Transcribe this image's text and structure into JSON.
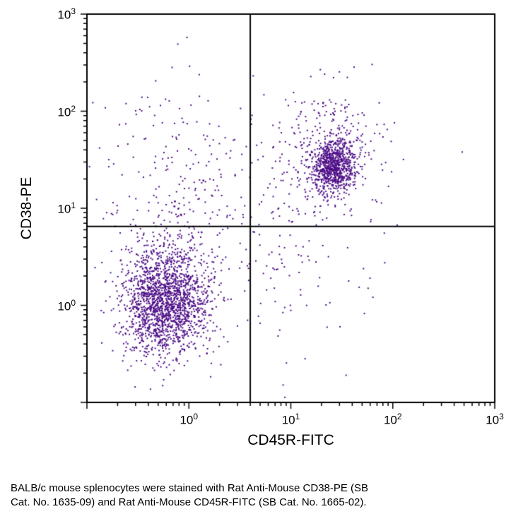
{
  "figure": {
    "caption": {
      "lines": [
        "BALB/c mouse splenocytes were stained with Rat Anti-Mouse CD38-PE (SB",
        "Cat. No. 1635-09) and Rat Anti-Mouse CD45R-FITC (SB Cat. No. 1665-02)."
      ]
    }
  },
  "chart_data": {
    "type": "scatter",
    "title": "",
    "xlabel": "CD45R-FITC",
    "ylabel": "CD38-PE",
    "x_scale": "log",
    "y_scale": "log",
    "xlim": [
      0.1,
      1000
    ],
    "ylim": [
      0.1,
      1000
    ],
    "x_tick_exponents": [
      0,
      1,
      2,
      3
    ],
    "y_tick_exponents": [
      0,
      1,
      2,
      3
    ],
    "tick_base": "10",
    "grid": false,
    "legend": "none",
    "quadrant_gates": {
      "x": 4.0,
      "y": 6.5
    },
    "point_color": "#4d0d87",
    "axis_color": "#000000",
    "populations": [
      {
        "name": "CD45R-neg CD38-low splenocytes",
        "center": [
          0.58,
          1.05
        ],
        "sigma_log": [
          0.21,
          0.27
        ],
        "count": 1700
      },
      {
        "name": "CD45R-neg tail upward",
        "center": [
          0.75,
          3.5
        ],
        "sigma_log": [
          0.25,
          0.35
        ],
        "count": 200
      },
      {
        "name": "upper-left scatter CD38-pos",
        "center": [
          0.7,
          30
        ],
        "sigma_log": [
          0.4,
          0.45
        ],
        "count": 130
      },
      {
        "name": "CD45R-pos CD38-pos B cells (core)",
        "center": [
          26,
          27
        ],
        "sigma_log": [
          0.11,
          0.13
        ],
        "count": 750
      },
      {
        "name": "B cell halo",
        "center": [
          24,
          40
        ],
        "sigma_log": [
          0.26,
          0.33
        ],
        "count": 330
      },
      {
        "name": "bridge between populations",
        "center": [
          6,
          10
        ],
        "sigma_log": [
          0.45,
          0.45
        ],
        "count": 90
      },
      {
        "name": "lower-right sparse",
        "center": [
          12,
          2
        ],
        "sigma_log": [
          0.35,
          0.4
        ],
        "count": 45
      },
      {
        "name": "diffuse background",
        "center": [
          1.5,
          2
        ],
        "sigma_log": [
          0.9,
          0.9
        ],
        "count": 100
      }
    ],
    "extra_points": [
      [
        480,
        38
      ]
    ],
    "seed": 42
  }
}
